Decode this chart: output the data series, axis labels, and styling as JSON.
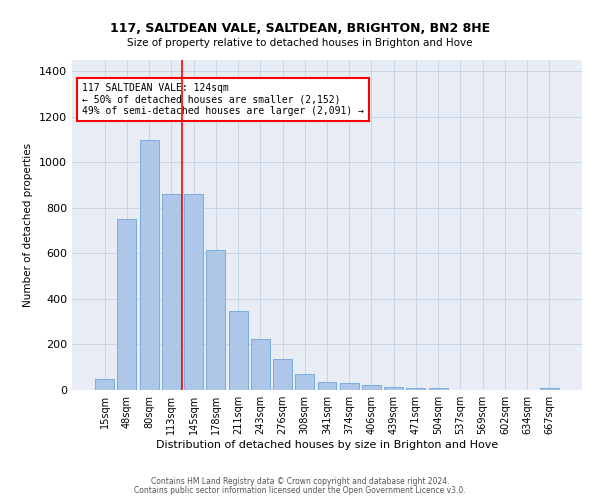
{
  "title1": "117, SALTDEAN VALE, SALTDEAN, BRIGHTON, BN2 8HE",
  "title2": "Size of property relative to detached houses in Brighton and Hove",
  "xlabel": "Distribution of detached houses by size in Brighton and Hove",
  "ylabel": "Number of detached properties",
  "footer1": "Contains HM Land Registry data © Crown copyright and database right 2024.",
  "footer2": "Contains public sector information licensed under the Open Government Licence v3.0.",
  "annotation_line1": "117 SALTDEAN VALE: 124sqm",
  "annotation_line2": "← 50% of detached houses are smaller (2,152)",
  "annotation_line3": "49% of semi-detached houses are larger (2,091) →",
  "bar_labels": [
    "15sqm",
    "48sqm",
    "80sqm",
    "113sqm",
    "145sqm",
    "178sqm",
    "211sqm",
    "243sqm",
    "276sqm",
    "308sqm",
    "341sqm",
    "374sqm",
    "406sqm",
    "439sqm",
    "471sqm",
    "504sqm",
    "537sqm",
    "569sqm",
    "602sqm",
    "634sqm",
    "667sqm"
  ],
  "bar_heights": [
    50,
    750,
    1100,
    860,
    860,
    615,
    345,
    225,
    135,
    70,
    35,
    30,
    20,
    15,
    10,
    10,
    0,
    0,
    0,
    0,
    10
  ],
  "bar_color": "#aec6e8",
  "bar_edge_color": "#5b9bd5",
  "grid_color": "#c8d4e8",
  "background_color": "#e8edf5",
  "vline_color": "red",
  "vline_x": 3.5,
  "ylim": [
    0,
    1450
  ],
  "yticks": [
    0,
    200,
    400,
    600,
    800,
    1000,
    1200,
    1400
  ]
}
